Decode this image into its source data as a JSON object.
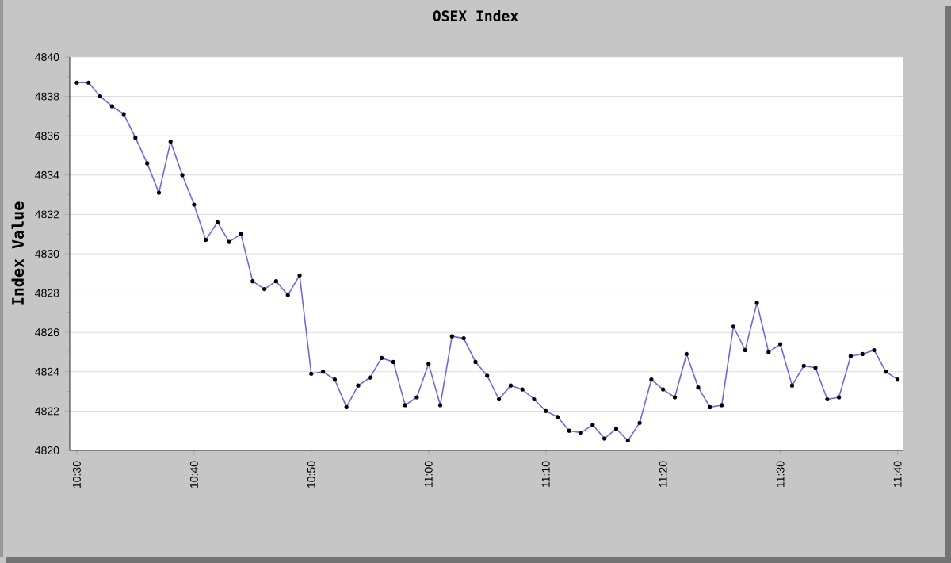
{
  "chart_data": {
    "type": "line",
    "title": "OSEX Index",
    "ylabel": "Index Value",
    "x": [
      10.5,
      10.5167,
      10.5333,
      10.55,
      10.5667,
      10.5833,
      10.6,
      10.6167,
      10.6333,
      10.65,
      10.6667,
      10.6833,
      10.7,
      10.7167,
      10.7333,
      10.75,
      10.7667,
      10.7833,
      10.8,
      10.8167,
      10.8333,
      10.85,
      10.8667,
      10.8833,
      10.9,
      10.9167,
      10.9333,
      10.95,
      10.9667,
      10.9833,
      11,
      11.0167,
      11.0333,
      11.05,
      11.0667,
      11.0833,
      11.1,
      11.1167,
      11.1333,
      11.15,
      11.1667,
      11.1833,
      11.2,
      11.2167,
      11.2333,
      11.25,
      11.2667,
      11.2833,
      11.3,
      11.3167,
      11.3333,
      11.35,
      11.3667,
      11.3833,
      11.4,
      11.4167,
      11.4333,
      11.45,
      11.4667,
      11.4833,
      11.5,
      11.5167,
      11.5333,
      11.55,
      11.5667,
      11.5833,
      11.6,
      11.6167,
      11.6333,
      11.65,
      11.6667
    ],
    "series": [
      {
        "color": "#6a6ae0",
        "values": [
          4838.7,
          4838.7,
          4838.0,
          4837.5,
          4837.1,
          4835.9,
          4834.6,
          4833.1,
          4835.7,
          4834.0,
          4832.5,
          4830.7,
          4831.6,
          4830.6,
          4831.0,
          4828.6,
          4828.2,
          4828.6,
          4827.9,
          4828.9,
          4823.9,
          4824.0,
          4823.6,
          4822.2,
          4823.3,
          4823.7,
          4824.7,
          4824.5,
          4822.3,
          4822.7,
          4824.4,
          4822.3,
          4825.8,
          4825.7,
          4824.5,
          4823.8,
          4822.6,
          4823.3,
          4823.1,
          4822.6,
          4822.0,
          4821.7,
          4821.0,
          4820.9,
          4821.3,
          4820.6,
          4821.1,
          4820.5,
          4821.4,
          4823.6,
          4823.1,
          4822.7,
          4824.9,
          4823.2,
          4822.2,
          4822.3,
          4826.3,
          4825.1,
          4827.5,
          4825.0,
          4825.4,
          4823.3,
          4824.3,
          4824.2,
          4822.6,
          4822.7,
          4824.8,
          4824.9,
          4825.1,
          4824.0,
          4823.6
        ]
      }
    ],
    "xlim": [
      10.49,
      11.675
    ],
    "ylim": [
      4820,
      4840
    ],
    "xticks": [
      {
        "value": 10.5,
        "label": "10:30"
      },
      {
        "value": 10.6667,
        "label": "10:40"
      },
      {
        "value": 10.8333,
        "label": "10:50"
      },
      {
        "value": 11,
        "label": "11:00"
      },
      {
        "value": 11.1667,
        "label": "11:10"
      },
      {
        "value": 11.3333,
        "label": "11:20"
      },
      {
        "value": 11.5,
        "label": "11:30"
      },
      {
        "value": 11.6667,
        "label": "11:40"
      }
    ],
    "yticks": [
      4820,
      4822,
      4824,
      4826,
      4828,
      4830,
      4832,
      4834,
      4836,
      4838,
      4840
    ],
    "grid": "y",
    "marker": "circle",
    "line_style": "solid"
  }
}
